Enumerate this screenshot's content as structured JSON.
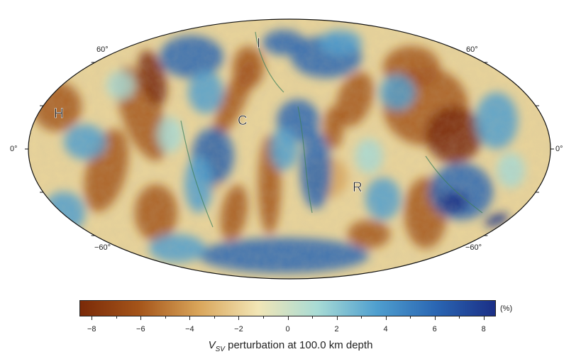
{
  "map": {
    "projection": "mollweide",
    "lat_labels": {
      "north_left": "60°",
      "north_right": "60°",
      "equator_left": "0°",
      "equator_right": "0°",
      "south_left": "−60°",
      "south_right": "−60°"
    },
    "place_labels": [
      "H",
      "I",
      "C",
      "R"
    ],
    "colors": {
      "slow": "#7a2a08",
      "brown": "#a5551a",
      "tan": "#d9a55a",
      "cream": "#f2e6b6",
      "aqua": "#a8dbd5",
      "sky": "#4f9fcf",
      "blue": "#2a66b3",
      "deep": "#1b2f86"
    }
  },
  "colorbar": {
    "min": -8.5,
    "max": 8.5,
    "ticks": [
      "−8",
      "−6",
      "−4",
      "−2",
      "0",
      "2",
      "4",
      "6",
      "8"
    ],
    "unit": "(%)",
    "title_v": "V",
    "title_sub": "SV",
    "title_rest": " perturbation at 100.0 km depth"
  }
}
